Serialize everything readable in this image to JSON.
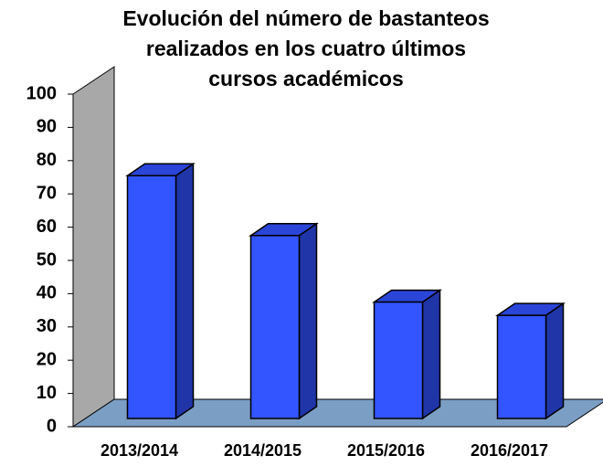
{
  "chart_data": {
    "type": "bar3d",
    "title": [
      "Evolución del número de bastanteos",
      "realizados en los cuatro últimos",
      "cursos académicos"
    ],
    "categories": [
      "2013/2014",
      "2014/2015",
      "2015/2016",
      "2016/2017"
    ],
    "values": [
      73,
      55,
      35,
      31
    ],
    "color": "#3355ff",
    "ylim": [
      0,
      100
    ],
    "yticks": [
      0,
      10,
      20,
      30,
      40,
      50,
      60,
      70,
      80,
      90,
      100
    ]
  }
}
